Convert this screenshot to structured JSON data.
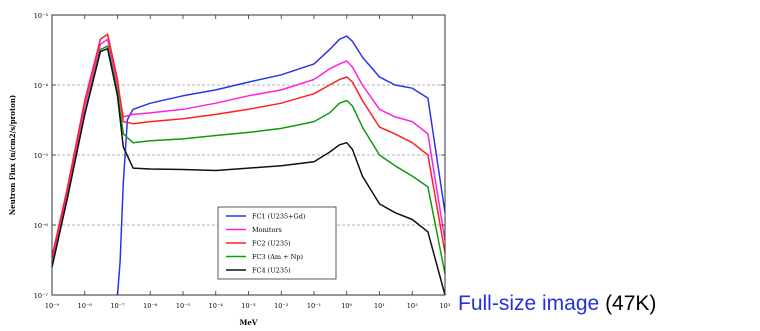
{
  "chart_data": {
    "type": "line",
    "title": "",
    "xlabel": "MeV",
    "ylabel": "Neutron Flux (n/cm2/s/proton)",
    "x_scale": "log",
    "y_scale": "log",
    "xlim": [
      1e-09,
      1000.0
    ],
    "ylim": [
      1e-07,
      0.001
    ],
    "xticks": [
      1e-09,
      1e-08,
      1e-07,
      1e-06,
      1e-05,
      0.0001,
      0.001,
      0.01,
      0.1,
      1,
      10,
      100,
      1000
    ],
    "xtick_labels": [
      "10⁻⁹",
      "10⁻⁸",
      "10⁻⁷",
      "10⁻⁶",
      "10⁻⁵",
      "10⁻⁴",
      "10⁻³",
      "10⁻²",
      "10⁻¹",
      "10⁰",
      "10¹",
      "10²",
      "10³"
    ],
    "yticks": [
      1e-07,
      1e-06,
      1e-05,
      0.0001,
      0.001
    ],
    "ytick_labels": [
      "10⁻⁷",
      "10⁻⁶",
      "10⁻⁵",
      "10⁻⁴",
      "10⁻³"
    ],
    "grid": "horizontal dashed",
    "legend_position": "bottom-center",
    "series": [
      {
        "name": "FC1  (U235+Gd)",
        "color": "#2a35e8",
        "x": [
          1e-07,
          1.2e-07,
          1.5e-07,
          2e-07,
          3e-07,
          1e-06,
          1e-05,
          0.0001,
          0.001,
          0.01,
          0.1,
          0.3,
          0.6,
          1,
          1.5,
          3,
          10,
          30,
          100,
          300,
          1000
        ],
        "y": [
          1e-07,
          3e-07,
          4e-06,
          3.2e-05,
          4.5e-05,
          5.5e-05,
          7e-05,
          8.5e-05,
          0.00011,
          0.00014,
          0.0002,
          0.00032,
          0.00045,
          0.0005,
          0.00042,
          0.00025,
          0.00013,
          0.0001,
          9e-05,
          6.5e-05,
          1.5e-06
        ]
      },
      {
        "name": "Monitors",
        "color": "#ff22dd",
        "x": [
          1e-09,
          3e-09,
          1e-08,
          3e-08,
          5e-08,
          1e-07,
          1.5e-07,
          3e-07,
          1e-06,
          1e-05,
          0.0001,
          0.001,
          0.01,
          0.1,
          0.3,
          0.6,
          1,
          1.5,
          3,
          10,
          30,
          100,
          300,
          1000
        ],
        "y": [
          3e-07,
          3e-06,
          5e-05,
          0.00038,
          0.00045,
          0.0001,
          3.5e-05,
          3.8e-05,
          4e-05,
          4.5e-05,
          5.5e-05,
          7e-05,
          8.5e-05,
          0.00012,
          0.00017,
          0.0002,
          0.00022,
          0.00018,
          0.0001,
          4.5e-05,
          3.5e-05,
          3e-05,
          2e-05,
          6e-07
        ]
      },
      {
        "name": "FC2 (U235)",
        "color": "#ff2020",
        "x": [
          1e-09,
          3e-09,
          1e-08,
          3e-08,
          5e-08,
          1e-07,
          1.5e-07,
          3e-07,
          1e-06,
          1e-05,
          0.0001,
          0.001,
          0.01,
          0.1,
          0.3,
          0.6,
          1,
          1.5,
          3,
          10,
          30,
          100,
          300,
          1000
        ],
        "y": [
          3.5e-07,
          3.5e-06,
          6e-05,
          0.00045,
          0.00053,
          0.00012,
          3e-05,
          2.8e-05,
          3e-05,
          3.3e-05,
          3.8e-05,
          4.5e-05,
          5.5e-05,
          7.5e-05,
          0.0001,
          0.00012,
          0.00013,
          0.00011,
          6e-05,
          2.5e-05,
          2e-05,
          1.5e-05,
          1e-05,
          4e-07
        ]
      },
      {
        "name": "FC3 (Am + Np)",
        "color": "#119911",
        "x": [
          1e-09,
          3e-09,
          1e-08,
          3e-08,
          5e-08,
          1e-07,
          1.5e-07,
          3e-07,
          1e-06,
          1e-05,
          0.0001,
          0.001,
          0.01,
          0.1,
          0.3,
          0.6,
          1,
          1.5,
          3,
          10,
          30,
          100,
          300,
          1000
        ],
        "y": [
          2.5e-07,
          2.5e-06,
          4e-05,
          0.00032,
          0.00036,
          8e-05,
          2e-05,
          1.5e-05,
          1.6e-05,
          1.7e-05,
          1.9e-05,
          2.1e-05,
          2.4e-05,
          3e-05,
          4e-05,
          5.5e-05,
          6e-05,
          5e-05,
          2.5e-05,
          1e-05,
          7e-06,
          5e-06,
          3.5e-06,
          2e-07
        ]
      },
      {
        "name": "FC4 (U235)",
        "color": "#111111",
        "x": [
          1e-09,
          3e-09,
          1e-08,
          3e-08,
          5e-08,
          1e-07,
          1.5e-07,
          3e-07,
          1e-06,
          1e-05,
          0.0001,
          0.001,
          0.01,
          0.1,
          0.3,
          0.6,
          1,
          1.5,
          3,
          10,
          30,
          100,
          300,
          1000
        ],
        "y": [
          2.5e-07,
          2.5e-06,
          3.8e-05,
          0.0003,
          0.00033,
          7e-05,
          1.3e-05,
          6.5e-06,
          6.3e-06,
          6.2e-06,
          6e-06,
          6.5e-06,
          7e-06,
          8e-06,
          1.1e-05,
          1.4e-05,
          1.5e-05,
          1.2e-05,
          5e-06,
          2e-06,
          1.5e-06,
          1.2e-06,
          8e-07,
          1e-07
        ]
      }
    ]
  },
  "caption": {
    "link_text": "Full-size image",
    "size_text": "(47K)"
  }
}
